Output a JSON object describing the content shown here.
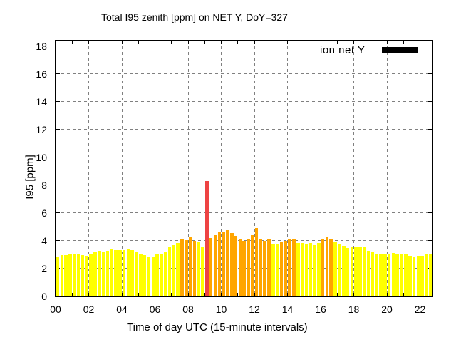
{
  "legend": {
    "label": "ion net Y",
    "swatch_color": "#000000"
  },
  "colors": {
    "background": "#ffffff",
    "border": "#000000",
    "grid": "#808080",
    "text": "#000000",
    "bar_yellow": "#ffff00",
    "bar_orange": "#ffa500",
    "bar_red": "#ee4343"
  },
  "chart_data": {
    "type": "bar",
    "title": "Total I95 zenith [ppm] on NET Y, DoY=327",
    "xlabel": "Time of day UTC (15-minute intervals)",
    "ylabel": "I95 [ppm]",
    "ylim": [
      0,
      18.4
    ],
    "xlim_hours": [
      0,
      22.75
    ],
    "grid": "dashed",
    "legend_position": "top-right-inside",
    "ytick_labels": [
      "0",
      "2",
      "4",
      "6",
      "8",
      "10",
      "12",
      "14",
      "16",
      "18"
    ],
    "xtick_labels": [
      "00",
      "02",
      "04",
      "06",
      "08",
      "10",
      "12",
      "14",
      "16",
      "18",
      "20",
      "22"
    ],
    "interval_minutes": 15,
    "times": [
      "00:00",
      "00:15",
      "00:30",
      "00:45",
      "01:00",
      "01:15",
      "01:30",
      "01:45",
      "02:00",
      "02:15",
      "02:30",
      "02:45",
      "03:00",
      "03:15",
      "03:30",
      "03:45",
      "04:00",
      "04:15",
      "04:30",
      "04:45",
      "05:00",
      "05:15",
      "05:30",
      "05:45",
      "06:00",
      "06:15",
      "06:30",
      "06:45",
      "07:00",
      "07:15",
      "07:30",
      "07:45",
      "08:00",
      "08:15",
      "08:30",
      "08:45",
      "09:00",
      "09:15",
      "09:30",
      "09:45",
      "10:00",
      "10:15",
      "10:30",
      "10:45",
      "11:00",
      "11:15",
      "11:30",
      "11:45",
      "12:00",
      "12:15",
      "12:30",
      "12:45",
      "13:00",
      "13:15",
      "13:30",
      "13:45",
      "14:00",
      "14:15",
      "14:30",
      "14:45",
      "15:00",
      "15:15",
      "15:30",
      "15:45",
      "16:00",
      "16:15",
      "16:30",
      "16:45",
      "17:00",
      "17:15",
      "17:30",
      "17:45",
      "18:00",
      "18:15",
      "18:30",
      "18:45",
      "19:00",
      "19:15",
      "19:30",
      "19:45",
      "20:00",
      "20:15",
      "20:30",
      "20:45",
      "21:00",
      "21:15",
      "21:30",
      "21:45",
      "22:00",
      "22:15",
      "22:30"
    ],
    "values": [
      2.85,
      2.95,
      2.95,
      3.05,
      3.0,
      3.05,
      2.95,
      2.9,
      3.0,
      3.25,
      3.3,
      3.2,
      3.3,
      3.4,
      3.35,
      3.35,
      3.35,
      3.45,
      3.35,
      3.25,
      3.05,
      2.95,
      2.85,
      2.85,
      3.0,
      3.1,
      3.25,
      3.55,
      3.7,
      3.85,
      4.1,
      4.05,
      4.25,
      4.0,
      3.95,
      3.6,
      8.3,
      4.2,
      4.4,
      4.65,
      4.65,
      4.75,
      4.55,
      4.35,
      4.15,
      4.0,
      4.15,
      4.4,
      4.9,
      4.15,
      4.0,
      4.1,
      3.8,
      3.8,
      3.9,
      4.0,
      4.15,
      4.1,
      3.85,
      3.85,
      3.8,
      3.85,
      3.7,
      3.85,
      4.1,
      4.25,
      4.1,
      3.9,
      3.8,
      3.65,
      3.5,
      3.6,
      3.55,
      3.55,
      3.55,
      3.3,
      3.2,
      3.05,
      3.05,
      3.1,
      3.05,
      3.15,
      3.0,
      3.1,
      3.0,
      2.9,
      2.85,
      2.9,
      2.9,
      3.0,
      3.05
    ],
    "bar_colors": [
      "yellow",
      "yellow",
      "yellow",
      "yellow",
      "yellow",
      "yellow",
      "yellow",
      "yellow",
      "yellow",
      "yellow",
      "yellow",
      "yellow",
      "yellow",
      "yellow",
      "yellow",
      "yellow",
      "yellow",
      "yellow",
      "yellow",
      "yellow",
      "yellow",
      "yellow",
      "yellow",
      "yellow",
      "yellow",
      "yellow",
      "yellow",
      "yellow",
      "yellow",
      "yellow",
      "orange",
      "orange",
      "orange",
      "orange",
      "yellow",
      "yellow",
      "red",
      "orange",
      "orange",
      "orange",
      "orange",
      "orange",
      "orange",
      "orange",
      "orange",
      "orange",
      "orange",
      "orange",
      "orange",
      "orange",
      "orange",
      "orange",
      "yellow",
      "yellow",
      "orange",
      "orange",
      "orange",
      "orange",
      "yellow",
      "yellow",
      "yellow",
      "yellow",
      "yellow",
      "yellow",
      "orange",
      "orange",
      "orange",
      "yellow",
      "yellow",
      "yellow",
      "yellow",
      "yellow",
      "yellow",
      "yellow",
      "yellow",
      "yellow",
      "yellow",
      "yellow",
      "yellow",
      "yellow",
      "yellow",
      "yellow",
      "yellow",
      "yellow",
      "yellow",
      "yellow",
      "yellow",
      "yellow",
      "yellow",
      "yellow",
      "yellow"
    ]
  }
}
